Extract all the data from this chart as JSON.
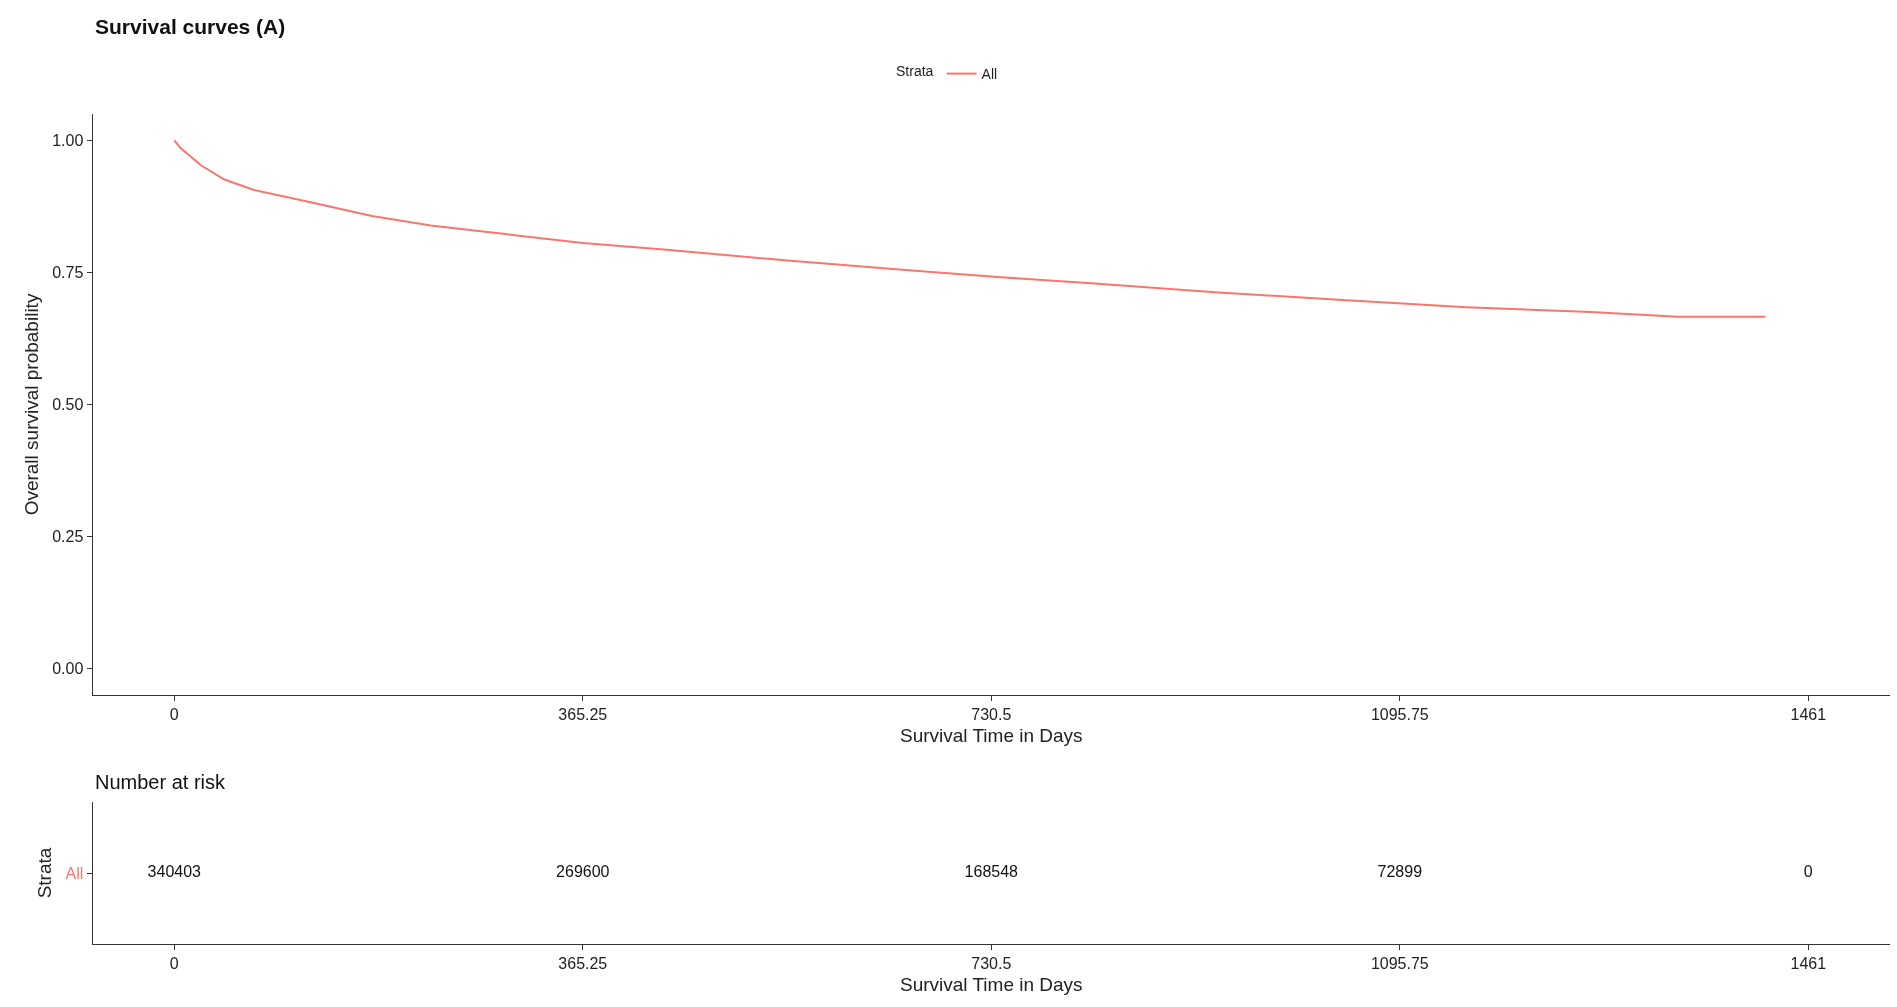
{
  "chart_data": [
    {
      "type": "line",
      "title": "Survival curves (A)",
      "xlabel": "Survival Time in Days",
      "ylabel": "Overall survival probability",
      "legend_title": "Strata",
      "legend": "top",
      "x": [
        0,
        5.3,
        23.8,
        44.8,
        71.2,
        123.9,
        176.6,
        229.3,
        282,
        365.25,
        440.2,
        545.6,
        651,
        739,
        822.8,
        933.6,
        1044.5,
        1155.4,
        1266.4,
        1344,
        1422.7
      ],
      "series": [
        {
          "name": "All",
          "color": "#f8766d",
          "values": [
            1.0,
            0.986,
            0.953,
            0.926,
            0.906,
            0.882,
            0.857,
            0.839,
            0.826,
            0.806,
            0.793,
            0.773,
            0.755,
            0.741,
            0.729,
            0.712,
            0.698,
            0.684,
            0.675,
            0.666,
            0.666
          ]
        }
      ],
      "xlim": [
        -73.05,
        1534.05
      ],
      "ylim": [
        -0.05,
        1.05
      ],
      "xticks": [
        0,
        365.25,
        730.5,
        1095.75,
        1461
      ],
      "yticks": [
        {
          "value": 0,
          "label": "0.00"
        },
        {
          "value": 0.25,
          "label": "0.25"
        },
        {
          "value": 0.5,
          "label": "0.50"
        },
        {
          "value": 0.75,
          "label": "0.75"
        },
        {
          "value": 1,
          "label": "1.00"
        }
      ],
      "grid": false
    },
    {
      "type": "heatmap",
      "title": "Number at risk",
      "xlabel": "Survival Time in Days",
      "ylabel": "Strata",
      "categories": [
        "0",
        "365.25",
        "730.5",
        "1095.75",
        "1461"
      ],
      "y_categories": [
        "All"
      ],
      "cells": [
        [
          340403,
          269600,
          168548,
          72899,
          0
        ]
      ],
      "data_labels": true
    }
  ]
}
